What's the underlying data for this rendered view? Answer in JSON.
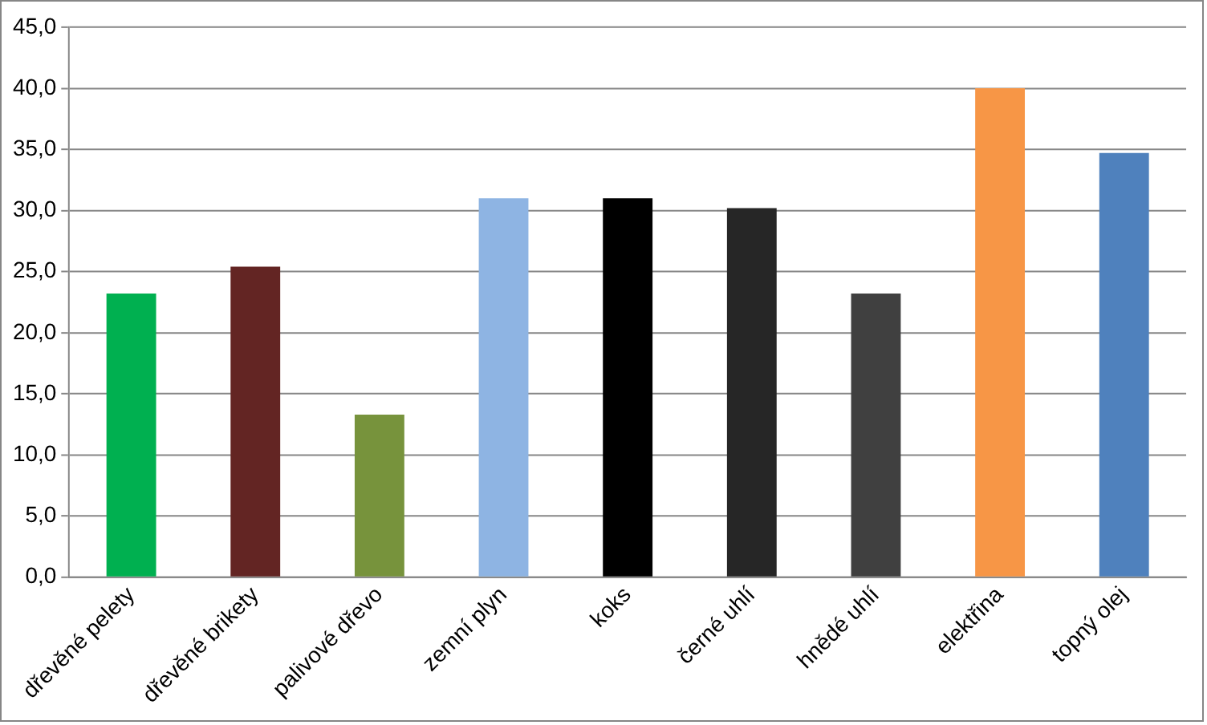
{
  "chart_data": {
    "type": "bar",
    "categories": [
      "dřevěné pelety",
      "dřevěné brikety",
      "palivové dřevo",
      "zemní plyn",
      "koks",
      "černé uhlí",
      "hnědé uhlí",
      "elektřina",
      "topný olej"
    ],
    "values": [
      23.2,
      25.4,
      13.3,
      31.0,
      31.0,
      30.2,
      23.2,
      40.0,
      34.7
    ],
    "colors": [
      "#00b050",
      "#632523",
      "#77933c",
      "#8eb4e3",
      "#000000",
      "#262626",
      "#404040",
      "#f79646",
      "#4f81bd"
    ],
    "ylim": [
      0,
      45
    ],
    "yticks": [
      {
        "value": 0,
        "label": "0,0"
      },
      {
        "value": 5,
        "label": "5,0"
      },
      {
        "value": 10,
        "label": "10,0"
      },
      {
        "value": 15,
        "label": "15,0"
      },
      {
        "value": 20,
        "label": "20,0"
      },
      {
        "value": 25,
        "label": "25,0"
      },
      {
        "value": 30,
        "label": "30,0"
      },
      {
        "value": 35,
        "label": "35,0"
      },
      {
        "value": 40,
        "label": "40,0"
      },
      {
        "value": 45,
        "label": "45,0"
      }
    ],
    "grid": "y",
    "legend": false
  }
}
